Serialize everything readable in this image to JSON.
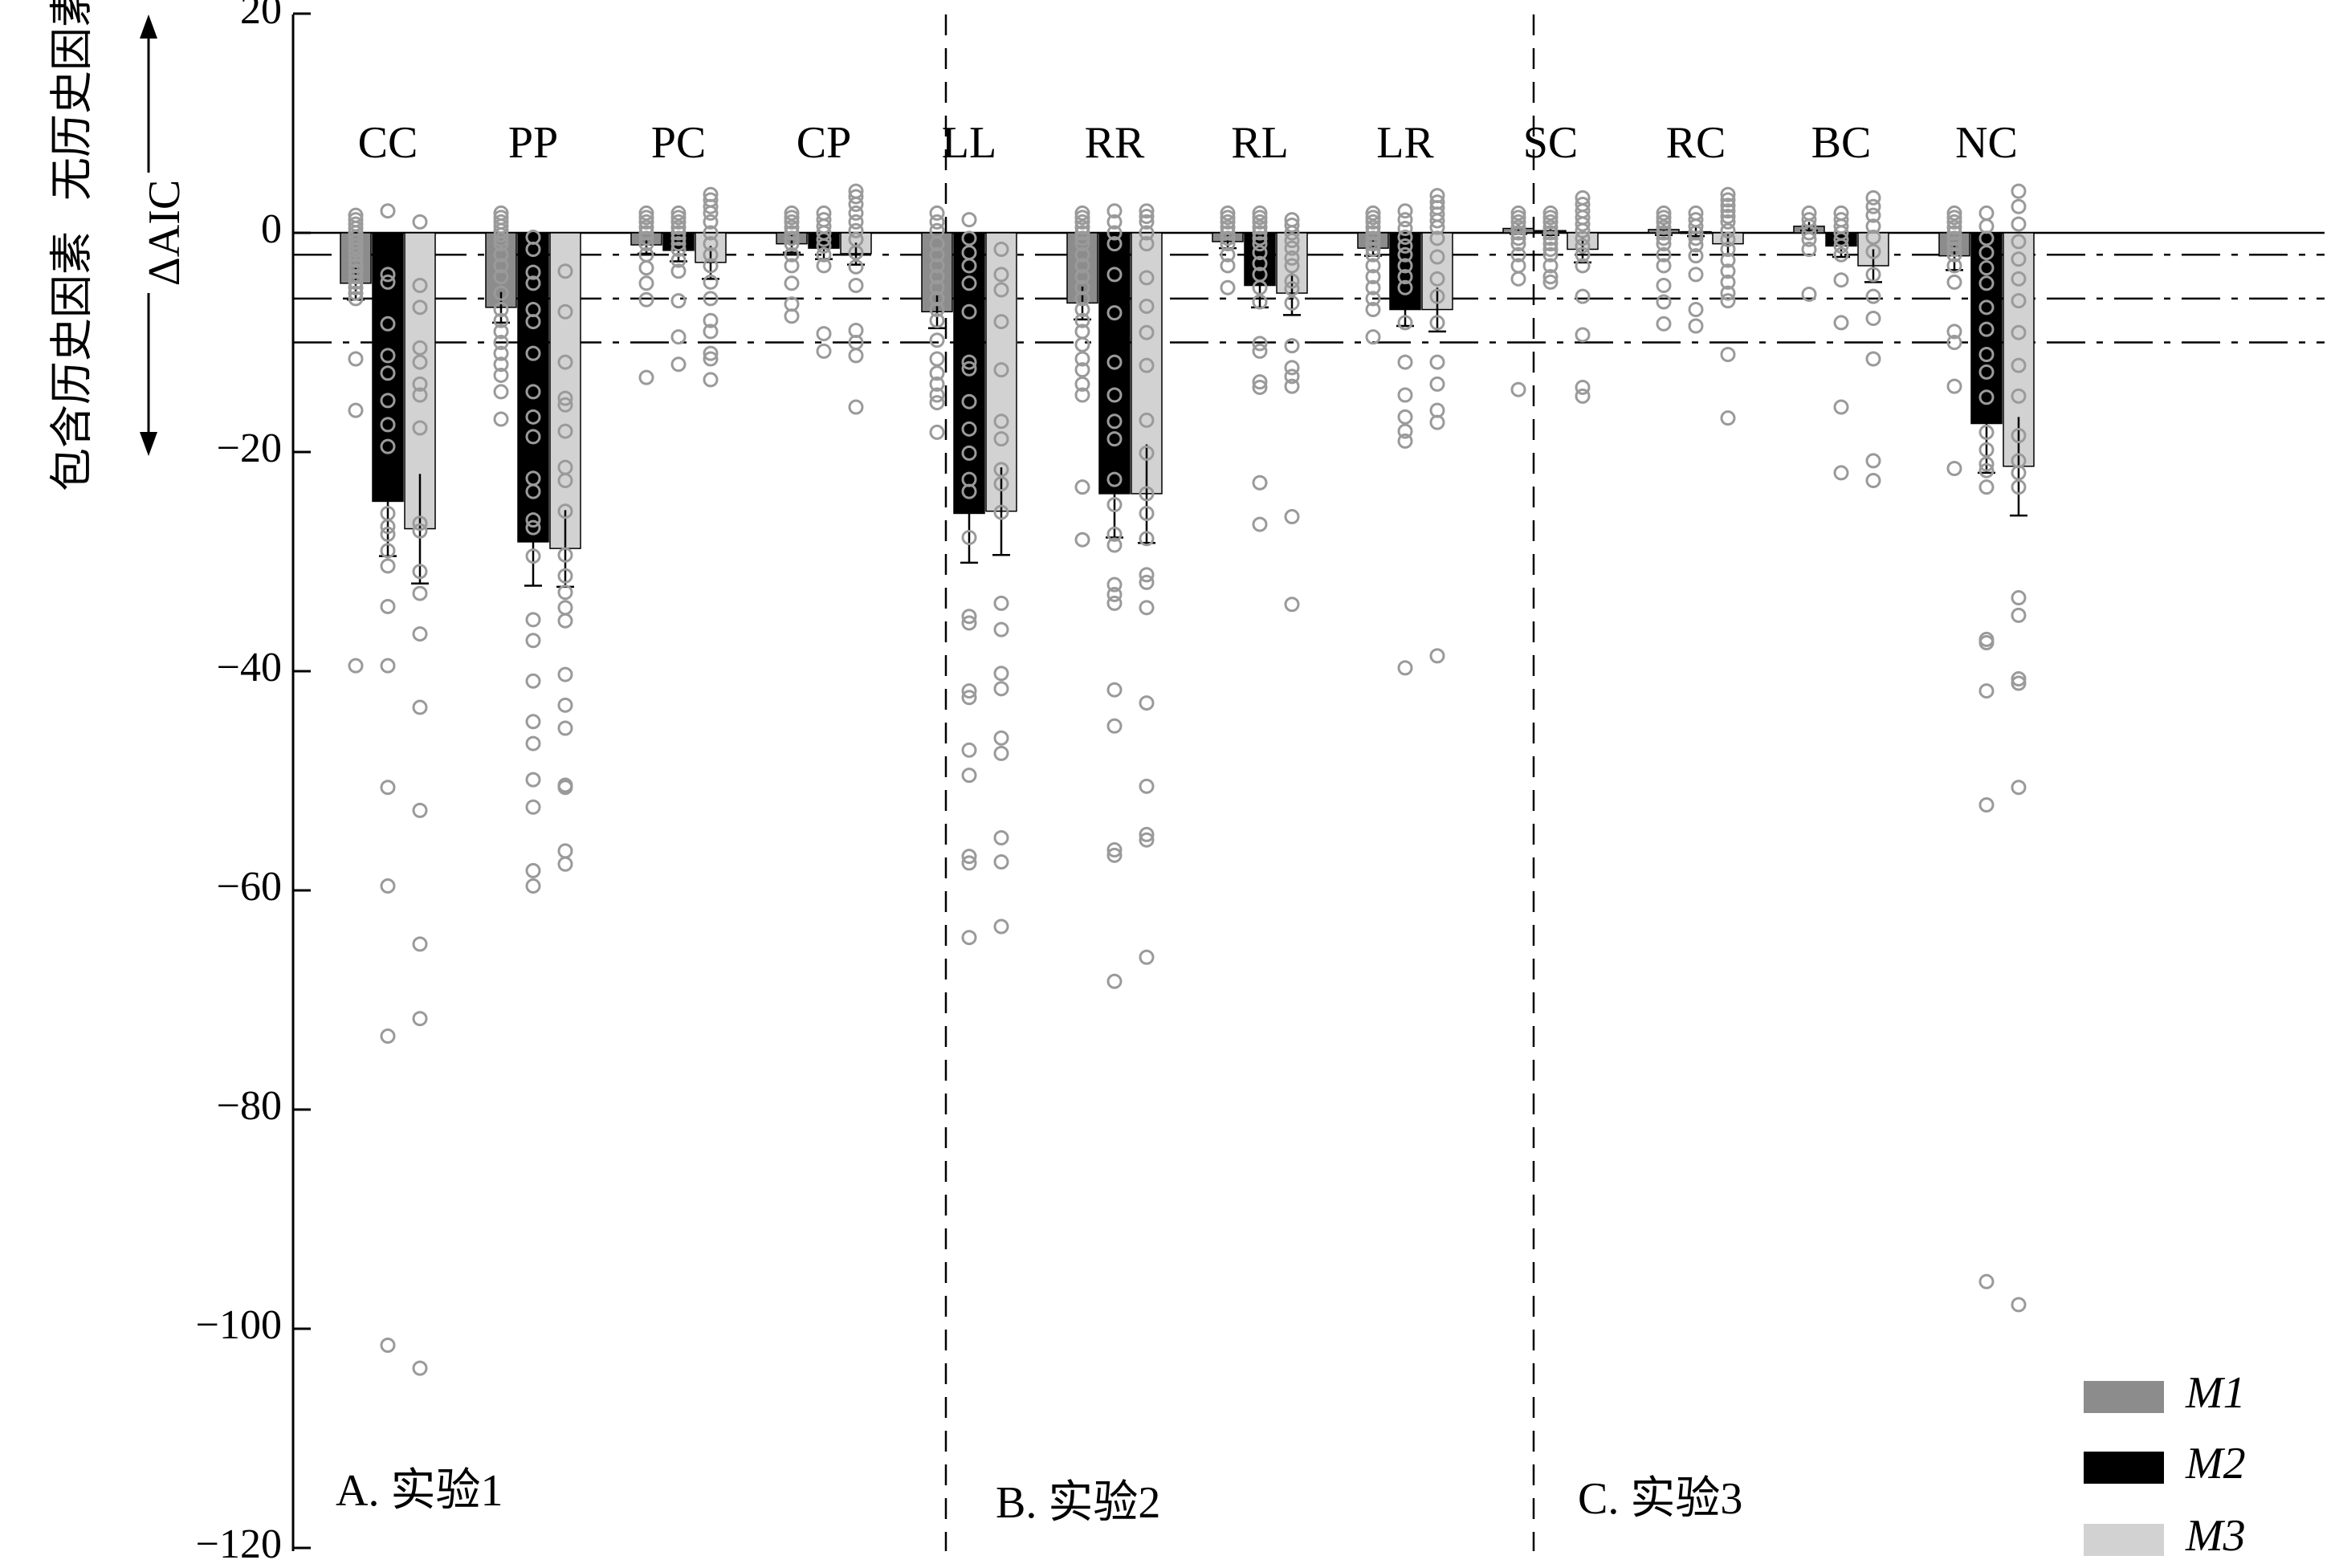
{
  "chart_data": {
    "type": "bar",
    "ylabel": "ΔAIC",
    "ylabel_up": "无历史因素",
    "ylabel_down": "包含历史因素",
    "ylim": [
      -120,
      20
    ],
    "yticks": [
      20,
      0,
      -20,
      -40,
      -60,
      -80,
      -100,
      -120
    ],
    "ytick_labels": [
      "20",
      "0",
      "−20",
      "−40",
      "−60",
      "−80",
      "−100",
      "−120"
    ],
    "reference_lines": [
      0,
      -2,
      -6,
      -10
    ],
    "grid": false,
    "legend_position": "bottom-right",
    "series_names": [
      "M1",
      "M2",
      "M3"
    ],
    "series_colors": [
      "#8c8c8c",
      "#000000",
      "#d2d2d2"
    ],
    "panels": [
      {
        "label": "A. 实验1",
        "categories": [
          "CC",
          "PP",
          "PC",
          "CP"
        ]
      },
      {
        "label": "B. 实验2",
        "categories": [
          "LL",
          "RR",
          "RL",
          "LR"
        ]
      },
      {
        "label": "C. 实验3",
        "categories": [
          "SC",
          "RC",
          "BC",
          "NC"
        ]
      }
    ],
    "categories": [
      "CC",
      "PP",
      "PC",
      "CP",
      "LL",
      "RR",
      "RL",
      "LR",
      "SC",
      "RC",
      "BC",
      "NC"
    ],
    "series": [
      {
        "name": "M1",
        "values": [
          -4.6,
          -6.8,
          -1.1,
          -1.0,
          -7.2,
          -6.4,
          -0.8,
          -1.4,
          0.4,
          0.3,
          0.6,
          -2.1
        ],
        "errors": [
          1.5,
          1.4,
          0.8,
          0.8,
          1.5,
          1.5,
          0.6,
          0.7,
          0.5,
          0.5,
          0.4,
          1.3
        ]
      },
      {
        "name": "M2",
        "values": [
          -24.5,
          -28.2,
          -1.6,
          -1.4,
          -25.6,
          -23.8,
          -4.8,
          -7.0,
          0.2,
          0.1,
          -1.2,
          -17.4
        ],
        "errors": [
          5.0,
          4.0,
          1.0,
          1.0,
          4.5,
          4.0,
          2.0,
          1.5,
          0.4,
          0.4,
          1.0,
          4.5
        ]
      },
      {
        "name": "M3",
        "values": [
          -27.0,
          -28.8,
          -2.7,
          -1.9,
          -25.4,
          -23.8,
          -5.5,
          -7.0,
          -1.5,
          -1.0,
          -3.0,
          -21.3
        ],
        "errors": [
          5.0,
          3.5,
          1.5,
          1.0,
          4.0,
          4.5,
          2.0,
          2.0,
          1.2,
          1.0,
          1.5,
          4.5
        ]
      }
    ],
    "points": {
      "CC": [
        [
          1.6,
          1.2,
          0.8,
          0.4,
          0,
          -0.4,
          -0.8,
          -1.2,
          -1.6,
          -2,
          -2.5,
          -3,
          -3.5,
          -4,
          -4.5,
          -5,
          -5.5,
          -6,
          -11.5,
          -16.2,
          -39.5
        ],
        [
          2,
          -3.8,
          -4.5,
          -8.3,
          -11.2,
          -12.8,
          -15.3,
          -17.5,
          -19.5,
          -25.6,
          -26.8,
          -27.5,
          -29,
          -30.4,
          -34.1,
          -39.5,
          -50.6,
          -59.6,
          -73.3,
          -101.5
        ],
        [
          1.0,
          -4.8,
          -6.8,
          -10.5,
          -11.8,
          -13.8,
          -14.8,
          -17.8,
          -26.5,
          -27.2,
          -30.9,
          -32.9,
          -36.6,
          -43.3,
          -52.7,
          -64.9,
          -71.7,
          -103.6
        ]
      ],
      "PP": [
        [
          1.8,
          1.4,
          1,
          0.6,
          0.2,
          -0.2,
          -0.6,
          -1,
          -2,
          -3,
          -4,
          -5.5,
          -7,
          -8,
          -9,
          -10,
          -11,
          -12,
          -13,
          -14.5,
          -17
        ],
        [
          -0.4,
          -1.5,
          -3.6,
          -4.6,
          -7,
          -8.1,
          -11,
          -14.5,
          -16.8,
          -18.6,
          -22.4,
          -23.6,
          -26.2,
          -26.9,
          -29.5,
          -35.3,
          -37.2,
          -40.9,
          -44.6,
          -46.6,
          -49.9,
          -52.4,
          -58.2,
          -59.6
        ],
        [
          -3.5,
          -7.2,
          -11.8,
          -15.1,
          -15.7,
          -18.1,
          -21.4,
          -22.6,
          -25.4,
          -29.4,
          -31.3,
          -32.8,
          -34.2,
          -35.4,
          -40.3,
          -43.1,
          -45.2,
          -50.4,
          -50.6,
          -56.4,
          -57.6
        ]
      ],
      "PC": [
        [
          1.8,
          1.4,
          1,
          0.5,
          0,
          -0.5,
          -1,
          -2,
          -3.2,
          -4.6,
          -6.1,
          -13.2
        ],
        [
          1.8,
          1.4,
          1,
          0.5,
          0,
          -0.5,
          -1,
          -1.5,
          -2.5,
          -3.5,
          -6.2,
          -9.5,
          -12
        ],
        [
          3.5,
          3,
          2.4,
          1.8,
          1,
          0,
          -1,
          -2,
          -3,
          -4.5,
          -6,
          -8,
          -9,
          -11,
          -11.5,
          -13.4
        ]
      ],
      "CP": [
        [
          1.8,
          1.4,
          1,
          0.5,
          0,
          -0.5,
          -1,
          -2,
          -3,
          -4.6,
          -6.5,
          -7.6
        ],
        [
          1.8,
          1.2,
          0.6,
          0,
          -0.6,
          -1.2,
          -2,
          -3,
          -9.2,
          -10.8
        ],
        [
          3.8,
          3.3,
          2.6,
          1.8,
          1,
          0.2,
          -0.6,
          -1.8,
          -3.1,
          -4.8,
          -8.9,
          -10,
          -11.2,
          -15.9
        ]
      ],
      "LL": [
        [
          1.8,
          1,
          0.2,
          -1,
          -2,
          -3,
          -4,
          -5,
          -6,
          -7,
          -8,
          -9.8,
          -11.5,
          -12.8,
          -13.8,
          -14.8,
          -15.5,
          -18.2
        ],
        [
          1.2,
          -0.5,
          -1.8,
          -3,
          -4.6,
          -7.2,
          -11.8,
          -12.4,
          -15.4,
          -17.9,
          -20.1,
          -22.5,
          -23.6,
          -27.8,
          -35,
          -35.6,
          -41.8,
          -42.4,
          -47.2,
          -49.5,
          -56.9,
          -57.5,
          -64.3
        ],
        [
          -1.5,
          -3.8,
          -5.2,
          -8.1,
          -12.5,
          -17.2,
          -18.8,
          -21.6,
          -22.9,
          -25.5,
          -33.8,
          -36.2,
          -40.2,
          -41.6,
          -46.1,
          -47.5,
          -55.2,
          -57.4,
          -63.3
        ]
      ],
      "RR": [
        [
          1.8,
          1.4,
          1,
          0.5,
          0,
          -0.5,
          -1,
          -2,
          -3,
          -4,
          -5,
          -6,
          -7,
          -8,
          -9,
          -10.2,
          -11.5,
          -12.5,
          -13.8,
          -14.8,
          -23.2,
          -28
        ],
        [
          2,
          1,
          0,
          -1,
          -3.8,
          -7.3,
          -11.8,
          -14.8,
          -17.2,
          -18.8,
          -22.5,
          -24.8,
          -27.5,
          -28.5,
          -32.1,
          -33,
          -33.8,
          -41.7,
          -45,
          -56.3,
          -56.8,
          -68.3
        ],
        [
          2,
          1.5,
          1,
          0,
          -1,
          -4.1,
          -6.7,
          -9.1,
          -12.1,
          -17.1,
          -20.1,
          -23.8,
          -25.6,
          -27.9,
          -31.2,
          -31.9,
          -34.2,
          -42.9,
          -50.5,
          -54.9,
          -55.4,
          -66.1
        ]
      ],
      "RL": [
        [
          1.8,
          1.4,
          1,
          0.5,
          0,
          -0.5,
          -1,
          -2,
          -3,
          -5
        ],
        [
          1.8,
          1.4,
          1,
          0.5,
          0,
          -0.5,
          -1,
          -1.8,
          -2.8,
          -3.8,
          -5,
          -6.3,
          -10.1,
          -10.8,
          -13.6,
          -14.1,
          -22.8,
          -26.6
        ],
        [
          1.2,
          0.7,
          0,
          -0.7,
          -1.4,
          -2.3,
          -3,
          -4.4,
          -5.1,
          -6.4,
          -10.3,
          -12.3,
          -13.1,
          -14,
          -25.9,
          -33.9
        ]
      ],
      "LR": [
        [
          1.8,
          1.4,
          1,
          0.5,
          0,
          -0.5,
          -1,
          -1.5,
          -2,
          -3,
          -4,
          -5,
          -6,
          -7,
          -9.5
        ],
        [
          2,
          1.2,
          0.4,
          -0.4,
          -1.2,
          -2,
          -3,
          -4,
          -5,
          -8.2,
          -11.8,
          -14.8,
          -16.8,
          -18.1,
          -19,
          -39.7
        ],
        [
          3.4,
          2.8,
          2.3,
          1.7,
          1.1,
          0.5,
          -0.5,
          -2.2,
          -4.2,
          -5.8,
          -8.2,
          -11.8,
          -13.8,
          -16.2,
          -17.3,
          -38.6
        ]
      ],
      "SC": [
        [
          1.8,
          1.4,
          1,
          0.5,
          0,
          -0.5,
          -1,
          -2,
          -3,
          -4.2,
          -14.3
        ],
        [
          1.8,
          1.4,
          1,
          0.5,
          0,
          -0.5,
          -1,
          -1.5,
          -2,
          -3,
          -4,
          -4.5
        ],
        [
          3.2,
          2.6,
          2,
          1.4,
          0.8,
          0.2,
          -0.5,
          -1.2,
          -2,
          -3,
          -5.8,
          -9.3,
          -14.1,
          -14.9
        ]
      ],
      "RC": [
        [
          1.8,
          1.4,
          1,
          0.5,
          0,
          -0.5,
          -1,
          -2,
          -3,
          -4.8,
          -6.3,
          -8.3
        ],
        [
          1.8,
          1.2,
          0.6,
          0,
          -0.5,
          -1.1,
          -2.1,
          -3.8,
          -7,
          -8.5
        ],
        [
          3.5,
          3,
          2.5,
          2,
          1.5,
          1,
          0.2,
          -0.6,
          -1.5,
          -2.5,
          -3.5,
          -4.5,
          -5.5,
          -6.2,
          -11.1,
          -16.9
        ]
      ],
      "BC": [
        [
          1.8,
          1.2,
          0.6,
          0,
          -0.6,
          -1.5,
          -5.6
        ],
        [
          1.8,
          1.2,
          0.6,
          0,
          -0.6,
          -1.2,
          -2,
          -4.3,
          -8.2,
          -15.9,
          -21.9
        ],
        [
          3.2,
          2.4,
          1.6,
          0.6,
          -0.4,
          -1.7,
          -3.8,
          -5.8,
          -7.8,
          -11.5,
          -20.8,
          -22.6
        ]
      ],
      "NC": [
        [
          1.8,
          1.4,
          1,
          0.5,
          0,
          -0.5,
          -1,
          -1.5,
          -2,
          -3,
          -4.5,
          -9,
          -10,
          -14,
          -21.5
        ],
        [
          1.8,
          0.6,
          -0.5,
          -1.8,
          -3.2,
          -4.6,
          -6.8,
          -8.8,
          -11.1,
          -12.7,
          -15,
          -18.2,
          -19.8,
          -21.1,
          -21.7,
          -23.2,
          -37.1,
          -37.4,
          -41.8,
          -52.2,
          -95.7
        ],
        [
          3.8,
          2.4,
          0.8,
          -0.8,
          -2.4,
          -4.2,
          -6.2,
          -9.1,
          -12.1,
          -14.9,
          -18.5,
          -20.8,
          -21.9,
          -23.2,
          -33.3,
          -34.9,
          -40.7,
          -41.1,
          -50.6,
          -97.8
        ]
      ]
    }
  }
}
